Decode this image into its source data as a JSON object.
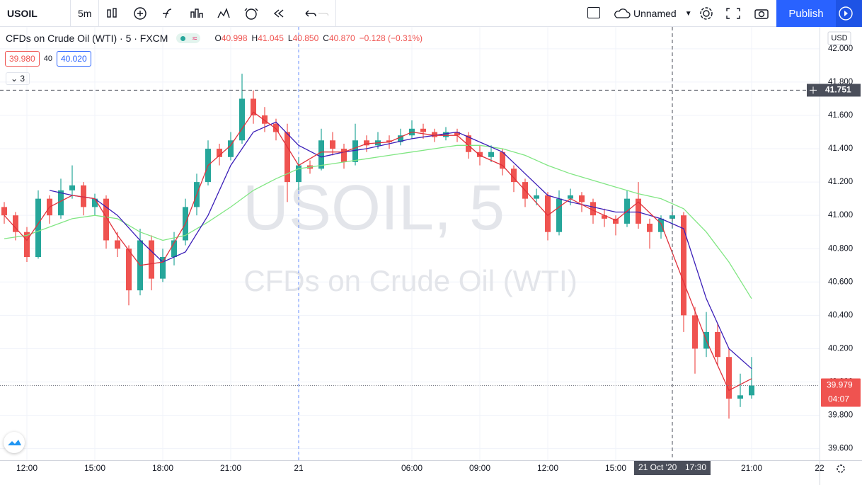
{
  "toolbar": {
    "symbol": "USOIL",
    "interval": "5m",
    "layout_name": "Unnamed",
    "publish": "Publish"
  },
  "legend": {
    "title": "CFDs on Crude Oil (WTI) · 5 · FXCM",
    "o_label": "O",
    "open": "40.998",
    "h_label": "H",
    "high": "41.045",
    "l_label": "L",
    "low": "40.850",
    "c_label": "C",
    "close": "40.870",
    "change": "−0.128 (−0.31%)",
    "bid": "39.980",
    "spread": "40",
    "ask": "40.020",
    "indicators_count": "3"
  },
  "watermark": {
    "symbol": "USOIL, 5",
    "description": "CFDs on Crude Oil (WTI)"
  },
  "chart_data": {
    "type": "candlestick",
    "currency": "USD",
    "x": [
      -2,
      -1,
      0,
      1,
      2,
      3,
      4,
      5,
      6,
      7,
      8,
      9,
      10,
      11,
      12,
      13,
      14,
      15,
      16,
      17,
      18,
      19,
      20,
      21,
      22,
      23,
      24,
      25,
      26,
      27,
      28,
      29,
      30,
      31,
      32,
      33,
      34,
      35,
      36,
      37,
      38,
      39,
      40,
      41,
      42,
      43,
      44,
      45,
      46,
      47,
      48,
      49,
      50,
      51,
      52,
      53,
      54,
      55,
      56,
      57,
      58,
      59,
      60,
      61,
      62,
      63,
      64
    ],
    "open": [
      41.05,
      41.0,
      40.9,
      40.75,
      41.1,
      41.0,
      41.15,
      41.18,
      41.05,
      41.1,
      40.85,
      40.8,
      40.55,
      40.85,
      40.62,
      40.75,
      40.85,
      41.05,
      41.2,
      41.4,
      41.35,
      41.45,
      41.7,
      41.6,
      41.55,
      41.5,
      41.2,
      41.3,
      41.28,
      41.45,
      41.4,
      41.32,
      41.45,
      41.42,
      41.45,
      41.44,
      41.48,
      41.52,
      41.5,
      41.47,
      41.5,
      41.48,
      41.38,
      41.35,
      41.38,
      41.28,
      41.2,
      41.1,
      41.12,
      40.9,
      41.1,
      41.12,
      41.08,
      41.0,
      40.98,
      40.95,
      41.1,
      40.95,
      40.9,
      40.98,
      41.0,
      40.4,
      40.2,
      40.3,
      40.15,
      39.9,
      39.92
    ],
    "high": [
      41.08,
      41.02,
      40.93,
      41.15,
      41.12,
      41.22,
      41.3,
      41.2,
      41.13,
      41.12,
      40.9,
      40.82,
      40.92,
      40.88,
      40.8,
      40.9,
      41.1,
      41.25,
      41.45,
      41.43,
      41.5,
      41.85,
      41.75,
      41.65,
      41.58,
      41.55,
      41.35,
      41.33,
      41.52,
      41.5,
      41.43,
      41.55,
      41.48,
      41.5,
      41.48,
      41.52,
      41.57,
      41.55,
      41.52,
      41.53,
      41.52,
      41.5,
      41.42,
      41.42,
      41.4,
      41.3,
      41.22,
      41.16,
      41.14,
      41.15,
      41.16,
      41.14,
      41.1,
      41.04,
      41.0,
      41.15,
      41.2,
      40.98,
      41.0,
      41.06,
      41.02,
      40.45,
      40.42,
      40.35,
      40.2,
      40.05,
      40.15
    ],
    "low": [
      40.95,
      40.85,
      40.72,
      40.74,
      40.95,
      40.98,
      41.1,
      41.0,
      41.0,
      40.8,
      40.75,
      40.46,
      40.52,
      40.55,
      40.6,
      40.7,
      40.82,
      41.0,
      41.18,
      41.3,
      41.33,
      41.43,
      41.55,
      41.5,
      41.45,
      41.08,
      41.15,
      41.25,
      41.27,
      41.36,
      41.28,
      41.3,
      41.38,
      41.4,
      41.4,
      41.42,
      41.46,
      41.46,
      41.44,
      41.45,
      41.44,
      41.34,
      41.3,
      41.32,
      41.24,
      41.14,
      41.05,
      41.06,
      40.85,
      40.88,
      41.06,
      41.02,
      40.95,
      40.93,
      40.88,
      40.93,
      40.92,
      40.8,
      40.86,
      40.92,
      40.3,
      40.05,
      40.15,
      40.1,
      39.78,
      39.85,
      39.9
    ],
    "close": [
      41.0,
      40.9,
      40.75,
      41.1,
      41.0,
      41.15,
      41.18,
      41.05,
      41.1,
      40.85,
      40.8,
      40.55,
      40.85,
      40.62,
      40.75,
      40.85,
      41.05,
      41.2,
      41.4,
      41.35,
      41.45,
      41.7,
      41.6,
      41.55,
      41.5,
      41.2,
      41.3,
      41.28,
      41.45,
      41.4,
      41.32,
      41.45,
      41.42,
      41.45,
      41.44,
      41.48,
      41.52,
      41.5,
      41.47,
      41.5,
      41.48,
      41.38,
      41.35,
      41.38,
      41.28,
      41.2,
      41.1,
      41.12,
      40.9,
      41.1,
      41.12,
      41.08,
      41.0,
      40.98,
      40.95,
      41.1,
      40.95,
      40.9,
      40.98,
      41.0,
      40.4,
      40.2,
      40.3,
      40.15,
      39.9,
      39.92,
      39.979
    ],
    "up_color": "#26a69a",
    "down_color": "#ef5350",
    "series": [
      {
        "color": "#81e683",
        "x": [
          -2,
          0,
          2,
          4,
          6,
          8,
          10,
          12,
          14,
          16,
          18,
          20,
          22,
          24,
          26,
          28,
          30,
          32,
          34,
          36,
          38,
          40,
          42,
          44,
          46,
          48,
          50,
          52,
          54,
          56,
          58,
          60,
          62,
          64
        ],
        "values": [
          40.86,
          40.88,
          40.93,
          40.98,
          41.0,
          40.98,
          40.9,
          40.85,
          40.88,
          40.96,
          41.05,
          41.15,
          41.22,
          41.28,
          41.3,
          41.32,
          41.34,
          41.36,
          41.38,
          41.4,
          41.42,
          41.42,
          41.4,
          41.36,
          41.3,
          41.25,
          41.21,
          41.17,
          41.13,
          41.1,
          41.04,
          40.9,
          40.72,
          40.5
        ]
      },
      {
        "color": "#3b1fb8",
        "x": [
          -2,
          0,
          2,
          4,
          6,
          8,
          10,
          12,
          14,
          16,
          18,
          20,
          22,
          24,
          26,
          28,
          30,
          32,
          34,
          36,
          38,
          40,
          42,
          44,
          46,
          48,
          50,
          52,
          54,
          56,
          58,
          60,
          62,
          64
        ],
        "values": [
          null,
          null,
          41.15,
          41.12,
          41.1,
          41.0,
          40.85,
          40.72,
          40.78,
          41.0,
          41.3,
          41.5,
          41.56,
          41.42,
          41.35,
          41.38,
          41.4,
          41.43,
          41.46,
          41.48,
          41.5,
          41.44,
          41.38,
          41.25,
          41.12,
          41.08,
          41.05,
          41.02,
          41.02,
          40.98,
          40.92,
          40.5,
          40.2,
          40.08
        ]
      },
      {
        "color": "#e0323c",
        "x": [
          -2,
          0,
          2,
          4,
          6,
          8,
          10,
          12,
          14,
          16,
          18,
          20,
          22,
          24,
          26,
          28,
          30,
          32,
          34,
          36,
          38,
          40,
          42,
          44,
          46,
          48,
          50,
          52,
          54,
          56,
          58,
          60,
          62,
          64
        ],
        "values": [
          41.0,
          40.85,
          41.05,
          41.12,
          41.1,
          40.88,
          40.7,
          40.72,
          40.95,
          41.3,
          41.42,
          41.62,
          41.52,
          41.3,
          41.38,
          41.38,
          41.43,
          41.44,
          41.5,
          41.48,
          41.48,
          41.36,
          41.3,
          41.15,
          41.0,
          41.1,
          41.03,
          40.97,
          41.08,
          40.95,
          40.6,
          40.25,
          39.95,
          40.02
        ]
      }
    ],
    "xlim": [
      -2.375,
      70
    ],
    "xticks": [
      {
        "value": 0,
        "label": "12:00"
      },
      {
        "value": 6,
        "label": "15:00"
      },
      {
        "value": 12,
        "label": "18:00"
      },
      {
        "value": 18,
        "label": "21:00"
      },
      {
        "value": 24,
        "label": "21"
      },
      {
        "value": 34,
        "label": "06:00"
      },
      {
        "value": 40,
        "label": "09:00"
      },
      {
        "value": 46,
        "label": "12:00"
      },
      {
        "value": 52,
        "label": "15:00"
      },
      {
        "value": 64,
        "label": "21:00"
      },
      {
        "value": 70,
        "label": "22"
      }
    ],
    "ylim": [
      39.5305,
      42.131
    ],
    "yticks": [
      {
        "value": 39.6,
        "label": "39.600"
      },
      {
        "value": 39.8,
        "label": "39.800"
      },
      {
        "value": 40.0,
        "label": "40.000"
      },
      {
        "value": 40.2,
        "label": "40.200"
      },
      {
        "value": 40.4,
        "label": "40.400"
      },
      {
        "value": 40.6,
        "label": "40.600"
      },
      {
        "value": 40.8,
        "label": "40.800"
      },
      {
        "value": 41.0,
        "label": "41.000"
      },
      {
        "value": 41.2,
        "label": "41.200"
      },
      {
        "value": 41.4,
        "label": "41.400"
      },
      {
        "value": 41.6,
        "label": "41.600"
      },
      {
        "value": 41.8,
        "label": "41.800"
      },
      {
        "value": 42.0,
        "label": "42.000"
      }
    ],
    "grid": true,
    "session_breaks": [
      24
    ],
    "crosshair": {
      "price": {
        "value": 41.751,
        "label": "41.751"
      },
      "time": {
        "value": 57,
        "date": "21 Oct '20",
        "label": "17:30"
      }
    },
    "last_price": {
      "value": 39.979,
      "label": "39.979"
    },
    "countdown": "04:07"
  }
}
